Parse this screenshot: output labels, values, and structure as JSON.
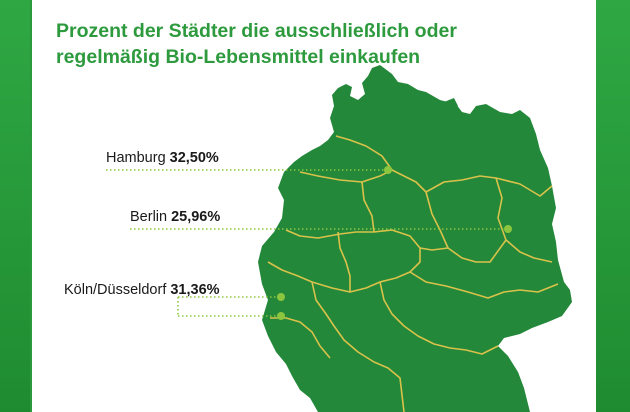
{
  "title": {
    "line1": "Prozent der Städter die ausschließlich oder",
    "line2": "regelmäßig Bio-Lebensmittel einkaufen"
  },
  "cities": [
    {
      "name": "Hamburg",
      "value": "32,50%"
    },
    {
      "name": "Berlin",
      "value": "25,96%"
    },
    {
      "name": "Köln/Düsseldorf",
      "value": "31,36%"
    }
  ],
  "colors": {
    "map_fill": "#23883a",
    "border": "#d9c24a",
    "leader": "#8cc63f",
    "title": "#2e9a3e",
    "frame": "#2a9a3c"
  }
}
